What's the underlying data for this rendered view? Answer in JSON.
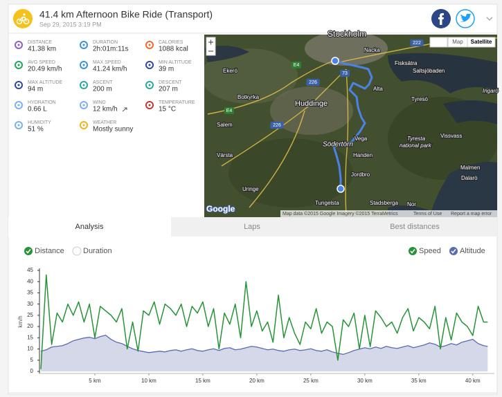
{
  "header": {
    "title": "41.4 km Afternoon Bike Ride (Transport)",
    "date": "Sep 29, 2015 3:19 PM"
  },
  "stats": [
    {
      "label": "DISTANCE",
      "value": "41.38 km"
    },
    {
      "label": "DURATION",
      "value": "2h:01m:11s"
    },
    {
      "label": "CALORIES",
      "value": "1088 kcal"
    },
    {
      "label": "AVG SPEED",
      "value": "20.49 km/h"
    },
    {
      "label": "MAX SPEED",
      "value": "41.24 km/h"
    },
    {
      "label": "MIN ALTITUDE",
      "value": "39 m"
    },
    {
      "label": "MAX ALTITUDE",
      "value": "94 m"
    },
    {
      "label": "ASCENT",
      "value": "200 m"
    },
    {
      "label": "DESCENT",
      "value": "207 m"
    },
    {
      "label": "HYDRATION",
      "value": "0.66 L"
    },
    {
      "label": "WIND",
      "value": "12 km/h"
    },
    {
      "label": "TEMPERATURE",
      "value": "15 °C"
    },
    {
      "label": "HUMIDITY",
      "value": "51 %"
    },
    {
      "label": "WEATHER",
      "value": "Mostly sunny"
    }
  ],
  "map": {
    "places": [
      "Stockholm",
      "Nacka",
      "Fisksätra",
      "Saltsjöbaden",
      "Ekerö",
      "Alta",
      "Tyresö",
      "Ingarö",
      "Botkyrka",
      "Huddinge",
      "Salem",
      "Vega",
      "Södertörn",
      "Vissvass",
      "Tyresta",
      "national park",
      "Handen",
      "Värsta",
      "Jordbro",
      "Malmen",
      "Dalarö",
      "Uringe",
      "Tungelsta",
      "Stadsberga",
      "Nor"
    ],
    "roads": [
      "222",
      "73",
      "226",
      "E4",
      "226",
      "E4"
    ],
    "controls": [
      "Map",
      "Satellite"
    ],
    "attribution": "Map data ©2015 Google Imagery ©2015 TerraMetrics",
    "terms": "Terms of Use",
    "report": "Report a map error",
    "logo": "Google"
  },
  "tabs": [
    "Analysis",
    "Laps",
    "Best distances"
  ],
  "chart_data": {
    "type": "line",
    "x_modes": [
      "Distance",
      "Duration"
    ],
    "x_mode_selected": "Distance",
    "ylabel": "km/h",
    "legend": "top-right",
    "grid": false,
    "x": [
      0,
      0.5,
      1,
      1.5,
      2,
      2.5,
      3,
      3.5,
      4,
      4.5,
      5,
      5.5,
      6,
      6.5,
      7,
      7.5,
      8,
      8.5,
      9,
      9.5,
      10,
      10.5,
      11,
      11.5,
      12,
      12.5,
      13,
      13.5,
      14,
      14.5,
      15,
      15.5,
      16,
      16.5,
      17,
      17.5,
      18,
      18.5,
      19,
      19.5,
      20,
      20.5,
      21,
      21.5,
      22,
      22.5,
      23,
      23.5,
      24,
      24.5,
      25,
      25.5,
      26,
      26.5,
      27,
      27.5,
      28,
      28.5,
      29,
      29.5,
      30,
      30.5,
      31,
      31.5,
      32,
      32.5,
      33,
      33.5,
      34,
      34.5,
      35,
      35.5,
      36,
      36.5,
      37,
      37.5,
      38,
      38.5,
      39,
      39.5,
      40,
      40.5,
      41,
      41.38
    ],
    "xlim": [
      0,
      42
    ],
    "xticks": [
      {
        "value": 5,
        "label": "5 km"
      },
      {
        "value": 10,
        "label": "10 km"
      },
      {
        "value": 15,
        "label": "15 km"
      },
      {
        "value": 20,
        "label": "20 km"
      },
      {
        "value": 25,
        "label": "25 km"
      },
      {
        "value": 30,
        "label": "30 km"
      },
      {
        "value": 35,
        "label": "35 km"
      },
      {
        "value": 40,
        "label": "40 km"
      }
    ],
    "ylim": [
      0,
      45
    ],
    "yticks": [
      0,
      5,
      10,
      15,
      20,
      25,
      30,
      35,
      40,
      45
    ],
    "y2lim": [
      -10,
      280
    ],
    "series": [
      {
        "name": "Speed",
        "color": "#279237",
        "values": [
          1,
          43,
          12,
          26,
          22,
          30,
          25,
          31,
          22,
          30,
          15,
          29,
          27,
          25,
          22,
          28,
          10,
          22,
          9,
          27,
          25,
          31,
          21,
          30,
          28,
          25,
          30,
          20,
          29,
          26,
          31,
          20,
          28,
          10,
          26,
          21,
          30,
          15,
          40,
          20,
          27,
          18,
          22,
          13,
          34,
          15,
          24,
          17,
          12,
          22,
          19,
          28,
          17,
          22,
          20,
          5,
          23,
          20,
          26,
          10,
          25,
          11,
          27,
          24,
          20,
          22,
          17,
          24,
          28,
          18,
          24,
          22,
          19,
          29,
          10,
          24,
          14,
          26,
          22,
          20,
          16,
          29,
          22,
          22
        ]
      },
      {
        "name": "Altitude",
        "color": "#5a6bb0",
        "fill": "#d4d8e8",
        "axis": "y2",
        "values": [
          48,
          52,
          60,
          62,
          64,
          70,
          78,
          82,
          86,
          88,
          84,
          90,
          94,
          82,
          74,
          70,
          62,
          55,
          50,
          47,
          44,
          46,
          48,
          46,
          50,
          52,
          48,
          52,
          55,
          50,
          48,
          52,
          55,
          50,
          56,
          58,
          52,
          54,
          58,
          62,
          60,
          56,
          52,
          54,
          50,
          48,
          52,
          54,
          50,
          52,
          55,
          50,
          48,
          52,
          46,
          42,
          39,
          44,
          50,
          54,
          58,
          55,
          60,
          56,
          62,
          58,
          56,
          60,
          64,
          58,
          62,
          66,
          72,
          68,
          60,
          64,
          70,
          66,
          74,
          78,
          82,
          70,
          64,
          62
        ]
      }
    ]
  }
}
